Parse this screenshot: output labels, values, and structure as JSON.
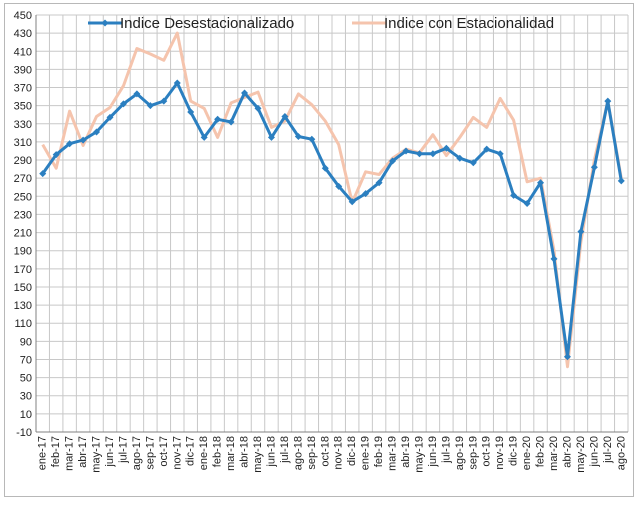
{
  "chart_data": {
    "type": "line",
    "title": "",
    "xlabel": "",
    "ylabel": "",
    "ylim": [
      -10,
      450
    ],
    "ytick_step": 20,
    "grid": true,
    "legend_position": "top",
    "categories": [
      "ene-17",
      "feb-17",
      "mar-17",
      "abr-17",
      "may-17",
      "jun-17",
      "jul-17",
      "ago-17",
      "sep-17",
      "oct-17",
      "nov-17",
      "dic-17",
      "ene-18",
      "feb-18",
      "mar-18",
      "abr-18",
      "may-18",
      "jun-18",
      "jul-18",
      "ago-18",
      "sep-18",
      "oct-18",
      "nov-18",
      "dic-18",
      "ene-19",
      "feb-19",
      "mar-19",
      "abr-19",
      "may-19",
      "jun-19",
      "jul-19",
      "ago-19",
      "sep-19",
      "oct-19",
      "nov-19",
      "dic-19",
      "ene-20",
      "feb-20",
      "mar-20",
      "abr-20",
      "may-20",
      "jun-20",
      "jul-20",
      "ago-20"
    ],
    "series": [
      {
        "name": "Indice Desestacionalizado",
        "color": "#2b7fc0",
        "values": [
          275,
          296,
          308,
          312,
          321,
          337,
          352,
          363,
          350,
          355,
          375,
          343,
          315,
          335,
          332,
          364,
          347,
          315,
          338,
          316,
          313,
          281,
          261,
          244,
          253,
          265,
          289,
          300,
          297,
          297,
          303,
          292,
          287,
          302,
          297,
          251,
          242,
          265,
          181,
          73,
          211,
          282,
          355,
          267
        ]
      },
      {
        "name": "Indice con Estacionalidad",
        "color": "#f5c4ad",
        "values": [
          307,
          281,
          344,
          306,
          338,
          348,
          372,
          413,
          407,
          400,
          430,
          355,
          347,
          315,
          353,
          359,
          365,
          326,
          333,
          363,
          351,
          333,
          307,
          243,
          277,
          274,
          292,
          302,
          298,
          318,
          295,
          315,
          337,
          326,
          358,
          334,
          266,
          270,
          190,
          62,
          200,
          290,
          355,
          270
        ]
      }
    ]
  }
}
